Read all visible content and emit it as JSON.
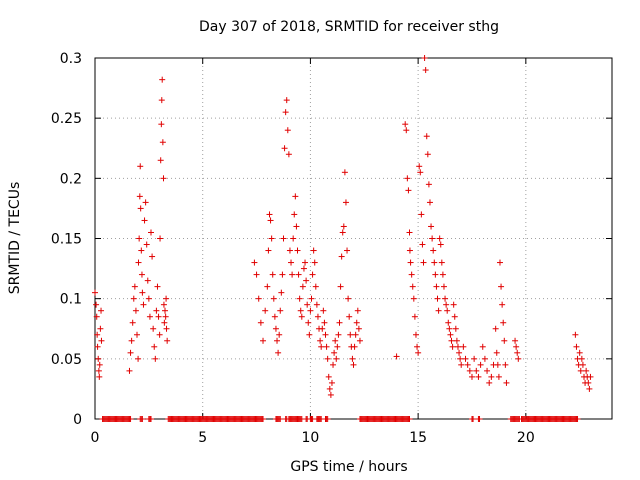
{
  "chart_data": {
    "type": "scatter",
    "title": "Day 307 of 2018, SRMTID for receiver sthg",
    "xlabel": "GPS time / hours",
    "ylabel": "SRMTID / TECUs",
    "xlim": [
      0,
      24
    ],
    "ylim": [
      0,
      0.3
    ],
    "xticks": [
      0,
      5,
      10,
      15,
      20
    ],
    "xtick_labels": [
      "0",
      "5",
      "10",
      "15",
      "20"
    ],
    "yticks": [
      0,
      0.05,
      0.1,
      0.15,
      0.2,
      0.25,
      0.3
    ],
    "ytick_labels": [
      "0",
      "0.05",
      "0.1",
      "0.15",
      "0.2",
      "0.25",
      "0.3"
    ],
    "grid": true,
    "marker": "+",
    "color": "#e00000",
    "series": [
      {
        "name": "SRMTID",
        "points": [
          [
            0.0,
            0.105
          ],
          [
            0.05,
            0.095
          ],
          [
            0.08,
            0.085
          ],
          [
            0.1,
            0.07
          ],
          [
            0.12,
            0.06
          ],
          [
            0.15,
            0.05
          ],
          [
            0.18,
            0.04
          ],
          [
            0.2,
            0.035
          ],
          [
            0.22,
            0.045
          ],
          [
            0.25,
            0.075
          ],
          [
            0.28,
            0.09
          ],
          [
            0.3,
            0.065
          ],
          [
            1.6,
            0.04
          ],
          [
            1.65,
            0.055
          ],
          [
            1.7,
            0.065
          ],
          [
            1.75,
            0.08
          ],
          [
            1.8,
            0.1
          ],
          [
            1.85,
            0.11
          ],
          [
            1.9,
            0.09
          ],
          [
            1.95,
            0.07
          ],
          [
            2.0,
            0.05
          ],
          [
            2.02,
            0.13
          ],
          [
            2.05,
            0.15
          ],
          [
            2.08,
            0.185
          ],
          [
            2.1,
            0.21
          ],
          [
            2.12,
            0.175
          ],
          [
            2.15,
            0.14
          ],
          [
            2.18,
            0.12
          ],
          [
            2.2,
            0.105
          ],
          [
            2.25,
            0.095
          ],
          [
            2.3,
            0.165
          ],
          [
            2.35,
            0.18
          ],
          [
            2.4,
            0.145
          ],
          [
            2.45,
            0.115
          ],
          [
            2.5,
            0.1
          ],
          [
            2.55,
            0.085
          ],
          [
            2.6,
            0.155
          ],
          [
            2.65,
            0.135
          ],
          [
            2.7,
            0.075
          ],
          [
            2.75,
            0.06
          ],
          [
            2.8,
            0.05
          ],
          [
            2.85,
            0.09
          ],
          [
            2.9,
            0.11
          ],
          [
            2.95,
            0.085
          ],
          [
            3.0,
            0.07
          ],
          [
            3.02,
            0.15
          ],
          [
            3.05,
            0.215
          ],
          [
            3.08,
            0.245
          ],
          [
            3.1,
            0.265
          ],
          [
            3.12,
            0.282
          ],
          [
            3.15,
            0.23
          ],
          [
            3.18,
            0.2
          ],
          [
            3.2,
            0.095
          ],
          [
            3.22,
            0.08
          ],
          [
            3.25,
            0.09
          ],
          [
            3.28,
            0.085
          ],
          [
            3.3,
            0.1
          ],
          [
            3.32,
            0.075
          ],
          [
            3.35,
            0.065
          ],
          [
            7.4,
            0.13
          ],
          [
            7.5,
            0.12
          ],
          [
            7.6,
            0.1
          ],
          [
            7.7,
            0.08
          ],
          [
            7.8,
            0.065
          ],
          [
            7.9,
            0.09
          ],
          [
            8.0,
            0.11
          ],
          [
            8.05,
            0.14
          ],
          [
            8.1,
            0.17
          ],
          [
            8.15,
            0.165
          ],
          [
            8.2,
            0.15
          ],
          [
            8.25,
            0.12
          ],
          [
            8.3,
            0.1
          ],
          [
            8.35,
            0.085
          ],
          [
            8.4,
            0.075
          ],
          [
            8.45,
            0.065
          ],
          [
            8.5,
            0.055
          ],
          [
            8.55,
            0.07
          ],
          [
            8.6,
            0.09
          ],
          [
            8.65,
            0.105
          ],
          [
            8.7,
            0.12
          ],
          [
            8.75,
            0.15
          ],
          [
            8.8,
            0.225
          ],
          [
            8.85,
            0.255
          ],
          [
            8.9,
            0.265
          ],
          [
            8.95,
            0.24
          ],
          [
            9.0,
            0.22
          ],
          [
            9.05,
            0.14
          ],
          [
            9.1,
            0.13
          ],
          [
            9.15,
            0.12
          ],
          [
            9.2,
            0.15
          ],
          [
            9.25,
            0.17
          ],
          [
            9.3,
            0.185
          ],
          [
            9.35,
            0.16
          ],
          [
            9.4,
            0.14
          ],
          [
            9.45,
            0.12
          ],
          [
            9.5,
            0.1
          ],
          [
            9.55,
            0.09
          ],
          [
            9.6,
            0.085
          ],
          [
            9.65,
            0.11
          ],
          [
            9.7,
            0.125
          ],
          [
            9.75,
            0.13
          ],
          [
            9.8,
            0.115
          ],
          [
            9.85,
            0.095
          ],
          [
            9.9,
            0.08
          ],
          [
            9.95,
            0.07
          ],
          [
            10.0,
            0.09
          ],
          [
            10.05,
            0.1
          ],
          [
            10.1,
            0.12
          ],
          [
            10.15,
            0.14
          ],
          [
            10.2,
            0.13
          ],
          [
            10.25,
            0.11
          ],
          [
            10.3,
            0.095
          ],
          [
            10.35,
            0.085
          ],
          [
            10.4,
            0.075
          ],
          [
            10.45,
            0.065
          ],
          [
            10.5,
            0.06
          ],
          [
            10.55,
            0.075
          ],
          [
            10.6,
            0.09
          ],
          [
            10.65,
            0.08
          ],
          [
            10.7,
            0.07
          ],
          [
            10.75,
            0.06
          ],
          [
            10.8,
            0.05
          ],
          [
            10.85,
            0.035
          ],
          [
            10.9,
            0.025
          ],
          [
            10.95,
            0.02
          ],
          [
            11.0,
            0.03
          ],
          [
            11.05,
            0.045
          ],
          [
            11.1,
            0.055
          ],
          [
            11.15,
            0.065
          ],
          [
            11.2,
            0.05
          ],
          [
            11.25,
            0.06
          ],
          [
            11.3,
            0.07
          ],
          [
            11.35,
            0.08
          ],
          [
            11.4,
            0.11
          ],
          [
            11.45,
            0.135
          ],
          [
            11.5,
            0.155
          ],
          [
            11.55,
            0.16
          ],
          [
            11.6,
            0.205
          ],
          [
            11.65,
            0.18
          ],
          [
            11.7,
            0.14
          ],
          [
            11.75,
            0.1
          ],
          [
            11.8,
            0.085
          ],
          [
            11.85,
            0.07
          ],
          [
            11.9,
            0.06
          ],
          [
            11.95,
            0.05
          ],
          [
            12.0,
            0.045
          ],
          [
            12.05,
            0.06
          ],
          [
            12.1,
            0.07
          ],
          [
            12.15,
            0.08
          ],
          [
            12.2,
            0.09
          ],
          [
            12.25,
            0.075
          ],
          [
            12.3,
            0.065
          ],
          [
            14.0,
            0.052
          ],
          [
            14.4,
            0.245
          ],
          [
            14.45,
            0.24
          ],
          [
            14.5,
            0.2
          ],
          [
            14.55,
            0.19
          ],
          [
            14.6,
            0.155
          ],
          [
            14.62,
            0.14
          ],
          [
            14.65,
            0.13
          ],
          [
            14.7,
            0.12
          ],
          [
            14.75,
            0.11
          ],
          [
            14.8,
            0.1
          ],
          [
            14.85,
            0.085
          ],
          [
            14.9,
            0.07
          ],
          [
            14.95,
            0.06
          ],
          [
            15.0,
            0.055
          ],
          [
            15.05,
            0.21
          ],
          [
            15.1,
            0.205
          ],
          [
            15.15,
            0.17
          ],
          [
            15.2,
            0.145
          ],
          [
            15.25,
            0.13
          ],
          [
            15.3,
            0.3
          ],
          [
            15.35,
            0.29
          ],
          [
            15.4,
            0.235
          ],
          [
            15.45,
            0.22
          ],
          [
            15.5,
            0.195
          ],
          [
            15.55,
            0.18
          ],
          [
            15.6,
            0.16
          ],
          [
            15.65,
            0.15
          ],
          [
            15.7,
            0.14
          ],
          [
            15.75,
            0.13
          ],
          [
            15.8,
            0.12
          ],
          [
            15.85,
            0.11
          ],
          [
            15.9,
            0.1
          ],
          [
            15.95,
            0.09
          ],
          [
            16.0,
            0.15
          ],
          [
            16.05,
            0.145
          ],
          [
            16.1,
            0.13
          ],
          [
            16.15,
            0.12
          ],
          [
            16.2,
            0.11
          ],
          [
            16.25,
            0.1
          ],
          [
            16.3,
            0.095
          ],
          [
            16.35,
            0.09
          ],
          [
            16.4,
            0.08
          ],
          [
            16.45,
            0.075
          ],
          [
            16.5,
            0.07
          ],
          [
            16.55,
            0.065
          ],
          [
            16.6,
            0.06
          ],
          [
            16.65,
            0.095
          ],
          [
            16.7,
            0.085
          ],
          [
            16.75,
            0.075
          ],
          [
            16.8,
            0.065
          ],
          [
            16.85,
            0.06
          ],
          [
            16.9,
            0.055
          ],
          [
            16.95,
            0.05
          ],
          [
            17.0,
            0.045
          ],
          [
            17.1,
            0.06
          ],
          [
            17.2,
            0.05
          ],
          [
            17.3,
            0.045
          ],
          [
            17.4,
            0.04
          ],
          [
            17.5,
            0.035
          ],
          [
            17.6,
            0.05
          ],
          [
            17.7,
            0.04
          ],
          [
            17.8,
            0.035
          ],
          [
            17.9,
            0.045
          ],
          [
            18.0,
            0.06
          ],
          [
            18.1,
            0.05
          ],
          [
            18.2,
            0.04
          ],
          [
            18.3,
            0.03
          ],
          [
            18.4,
            0.035
          ],
          [
            18.5,
            0.045
          ],
          [
            18.6,
            0.075
          ],
          [
            18.65,
            0.055
          ],
          [
            18.7,
            0.045
          ],
          [
            18.75,
            0.035
          ],
          [
            18.8,
            0.13
          ],
          [
            18.85,
            0.11
          ],
          [
            18.9,
            0.095
          ],
          [
            18.95,
            0.08
          ],
          [
            19.0,
            0.065
          ],
          [
            19.05,
            0.045
          ],
          [
            19.1,
            0.03
          ],
          [
            19.5,
            0.065
          ],
          [
            19.55,
            0.06
          ],
          [
            19.6,
            0.055
          ],
          [
            19.65,
            0.05
          ],
          [
            22.3,
            0.07
          ],
          [
            22.35,
            0.06
          ],
          [
            22.4,
            0.05
          ],
          [
            22.45,
            0.045
          ],
          [
            22.5,
            0.055
          ],
          [
            22.55,
            0.04
          ],
          [
            22.6,
            0.05
          ],
          [
            22.65,
            0.045
          ],
          [
            22.7,
            0.035
          ],
          [
            22.75,
            0.03
          ],
          [
            22.8,
            0.04
          ],
          [
            22.85,
            0.035
          ],
          [
            22.9,
            0.03
          ],
          [
            22.95,
            0.025
          ],
          [
            23.0,
            0.035
          ]
        ],
        "zero_ranges": [
          [
            0.35,
            1.65
          ],
          [
            2.1,
            2.2
          ],
          [
            2.5,
            2.6
          ],
          [
            3.4,
            7.8
          ],
          [
            8.4,
            8.6
          ],
          [
            8.85,
            8.9
          ],
          [
            9.0,
            9.6
          ],
          [
            9.8,
            9.85
          ],
          [
            10.0,
            10.1
          ],
          [
            10.3,
            10.5
          ],
          [
            10.7,
            10.8
          ],
          [
            12.3,
            14.6
          ],
          [
            17.5,
            17.55
          ],
          [
            17.8,
            17.85
          ],
          [
            19.3,
            19.7
          ],
          [
            19.8,
            22.4
          ]
        ]
      }
    ]
  }
}
